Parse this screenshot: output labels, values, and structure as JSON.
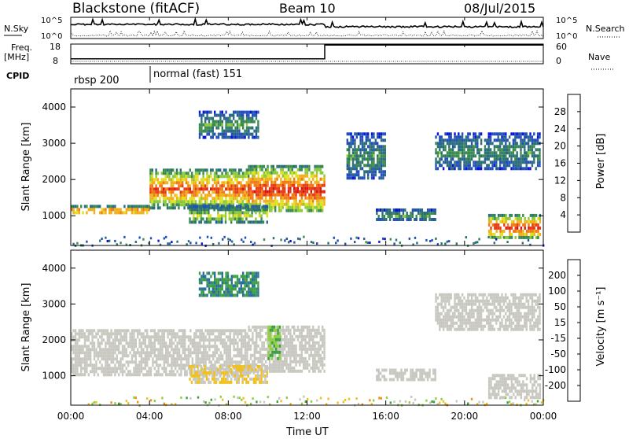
{
  "header": {
    "title": "Blackstone (fitACF)",
    "beam": "Beam 10",
    "date": "08/Jul/2015"
  },
  "summary_panel": {
    "left_labels": {
      "nsky": "N.Sky",
      "freq_line1": "Freq.",
      "freq_line2": "[MHz]",
      "cpid": "CPID"
    },
    "right_labels": {
      "nsearch": "N.Search",
      "nave": "Nave"
    },
    "noise_axis": {
      "top": "10^5",
      "bottom": "10^0",
      "right_top": "10^5",
      "right_bottom": "10^0"
    },
    "freq_axis": {
      "top": "18",
      "bottom": "8"
    },
    "nave_axis": {
      "top": "60",
      "bottom": "0"
    },
    "freq_data": {
      "times_h": [
        0,
        12.9,
        12.9,
        24
      ],
      "values_mhz": [
        10.5,
        10.5,
        17.5,
        17.5
      ]
    },
    "cpid_segments": [
      {
        "label": "rbsp 200",
        "start_h": 0
      },
      {
        "label": "normal (fast) 151",
        "start_h": 4
      }
    ]
  },
  "axes": {
    "xlabel": "Time UT",
    "xticks": [
      "00:00",
      "04:00",
      "08:00",
      "12:00",
      "16:00",
      "20:00",
      "00:00"
    ],
    "xrange_h": [
      0,
      24
    ],
    "ylabel": "Slant Range [km]",
    "yticks": [
      "1000",
      "2000",
      "3000",
      "4000"
    ],
    "yrange_km": [
      180,
      4500
    ]
  },
  "colorbars": {
    "power": {
      "label": "Power [dB]",
      "ticks": [
        "4",
        "8",
        "12",
        "16",
        "20",
        "24",
        "28"
      ],
      "colors": [
        "#0a14d8",
        "#2250b8",
        "#2a6e7a",
        "#3a8a50",
        "#8ac83c",
        "#e0e020",
        "#f0b018",
        "#f07a14",
        "#e83c14",
        "#d8140c"
      ]
    },
    "velocity": {
      "label": "Velocity [m s⁻¹]",
      "ticks": [
        "200",
        "100",
        "50",
        "15",
        "-15",
        "-50",
        "-100",
        "-200"
      ],
      "colors": [
        "#1a32c8",
        "#2a6e9a",
        "#3aa040",
        "#90d040",
        "#c8c8c0",
        "#f0c020",
        "#f09018",
        "#f05a14",
        "#e01a10"
      ]
    }
  },
  "chart_data": [
    {
      "type": "heatmap",
      "name": "power",
      "xlabel": "Time UT",
      "ylabel": "Slant Range [km]",
      "colorbar_label": "Power [dB]",
      "xlim_h": [
        0,
        24
      ],
      "ylim_km": [
        180,
        4500
      ],
      "zlim": [
        0,
        30
      ],
      "features": [
        {
          "t0": 0,
          "t1": 4,
          "r0": 1050,
          "r1": 1300,
          "db": 22
        },
        {
          "t0": 4,
          "t1": 9,
          "r0": 1250,
          "r1": 2300,
          "db": 22
        },
        {
          "t0": 9,
          "t1": 12.9,
          "r0": 1100,
          "r1": 2400,
          "db": 24
        },
        {
          "t0": 6,
          "t1": 10,
          "r0": 800,
          "r1": 1300,
          "db": 14
        },
        {
          "t0": 6.5,
          "t1": 9.5,
          "r0": 3200,
          "r1": 3900,
          "db": 10
        },
        {
          "t0": 15.5,
          "t1": 18.5,
          "r0": 900,
          "r1": 1200,
          "db": 10
        },
        {
          "t0": 14,
          "t1": 16,
          "r0": 2000,
          "r1": 3300,
          "db": 9
        },
        {
          "t0": 18.5,
          "t1": 23.8,
          "r0": 2300,
          "r1": 3300,
          "db": 9
        },
        {
          "t0": 21.2,
          "t1": 23.8,
          "r0": 400,
          "r1": 1050,
          "db": 24
        }
      ]
    },
    {
      "type": "heatmap",
      "name": "velocity",
      "xlabel": "Time UT",
      "ylabel": "Slant Range [km]",
      "colorbar_label": "Velocity [m s⁻¹]",
      "xlim_h": [
        0,
        24
      ],
      "ylim_km": [
        180,
        4500
      ],
      "zlim": [
        -200,
        200
      ],
      "features": [
        {
          "t0": 0,
          "t1": 9,
          "r0": 1000,
          "r1": 2300,
          "vel": 0
        },
        {
          "t0": 9,
          "t1": 12.9,
          "r0": 1100,
          "r1": 2400,
          "vel": 0
        },
        {
          "t0": 10,
          "t1": 10.6,
          "r0": 1500,
          "r1": 2400,
          "vel": 50
        },
        {
          "t0": 6,
          "t1": 10,
          "r0": 800,
          "r1": 1300,
          "vel": -20
        },
        {
          "t0": 6.5,
          "t1": 9.5,
          "r0": 3200,
          "r1": 3900,
          "vel": 100
        },
        {
          "t0": 15.5,
          "t1": 18.5,
          "r0": 900,
          "r1": 1200,
          "vel": 0
        },
        {
          "t0": 18.5,
          "t1": 23.8,
          "r0": 2300,
          "r1": 3300,
          "vel": 0
        },
        {
          "t0": 21.2,
          "t1": 23.8,
          "r0": 400,
          "r1": 1050,
          "vel": 0
        }
      ]
    }
  ]
}
